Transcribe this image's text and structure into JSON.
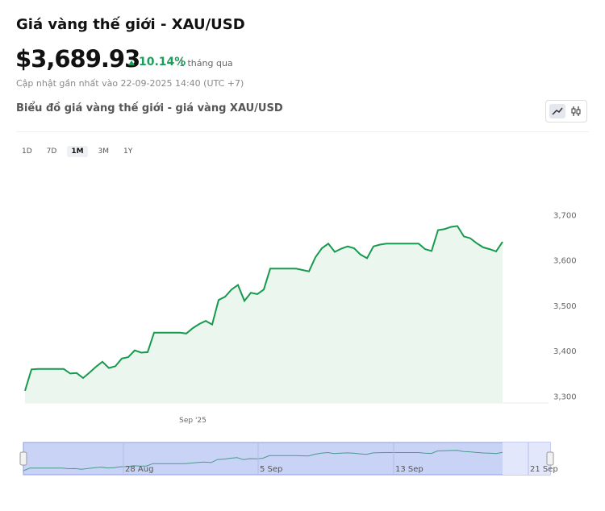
{
  "header": {
    "title": "Giá vàng thế giới - XAU/USD",
    "price": "$3,689.93",
    "change": "10.14%",
    "period": "1 tháng qua",
    "updated": "Cập nhật gần nhất vào 22-09-2025 14:40 (UTC +7)",
    "subtitle": "Biểu đồ giá vàng thế giới - giá vàng XAU/USD",
    "ranges": [
      "1D",
      "7D",
      "1M",
      "3M",
      "1Y"
    ],
    "active_range": "1M"
  },
  "chart_data": {
    "type": "area",
    "color": "#179a4e",
    "fill": "#eaf6ee",
    "categories": [
      null,
      null,
      null,
      null,
      null,
      null,
      null,
      null,
      null,
      null,
      null,
      null,
      null,
      null,
      null,
      null,
      null,
      null,
      null,
      null,
      null,
      null,
      null,
      null,
      null,
      null,
      "Sep '25",
      null,
      null,
      null,
      null,
      null,
      null,
      null,
      null,
      null,
      null,
      null,
      null,
      null,
      null,
      null,
      null,
      null,
      null,
      null,
      null,
      null,
      null,
      null,
      null,
      null,
      null,
      null,
      null,
      null,
      null,
      null,
      null,
      null,
      null,
      null,
      null,
      null,
      null,
      null,
      null,
      null,
      null,
      null,
      null,
      null,
      null,
      null,
      null
    ],
    "values": [
      3312,
      3359,
      3360,
      3360,
      3360,
      3360,
      3360,
      3350,
      3351,
      3340,
      3352,
      3365,
      3376,
      3362,
      3366,
      3383,
      3386,
      3401,
      3396,
      3397,
      3440,
      3440,
      3440,
      3440,
      3440,
      3438,
      3450,
      3459,
      3466,
      3458,
      3512,
      3519,
      3535,
      3545,
      3510,
      3528,
      3525,
      3535,
      3581,
      3581,
      3581,
      3581,
      3581,
      3578,
      3575,
      3606,
      3626,
      3636,
      3618,
      3625,
      3630,
      3626,
      3612,
      3604,
      3630,
      3634,
      3636,
      3636,
      3636,
      3636,
      3636,
      3636,
      3624,
      3620,
      3666,
      3668,
      3673,
      3675,
      3652,
      3648,
      3637,
      3628,
      3624,
      3619,
      3640
    ],
    "ylim": [
      3285,
      3800
    ],
    "yticks": [
      {
        "value": 3300,
        "label": "3,300"
      },
      {
        "value": 3400,
        "label": "3,400"
      },
      {
        "value": 3500,
        "label": "3,500"
      },
      {
        "value": 3600,
        "label": "3,600"
      },
      {
        "value": 3700,
        "label": "3,700"
      }
    ],
    "navigator_labels": [
      "28 Aug",
      "5 Sep",
      "13 Sep",
      "21 Sep"
    ]
  }
}
